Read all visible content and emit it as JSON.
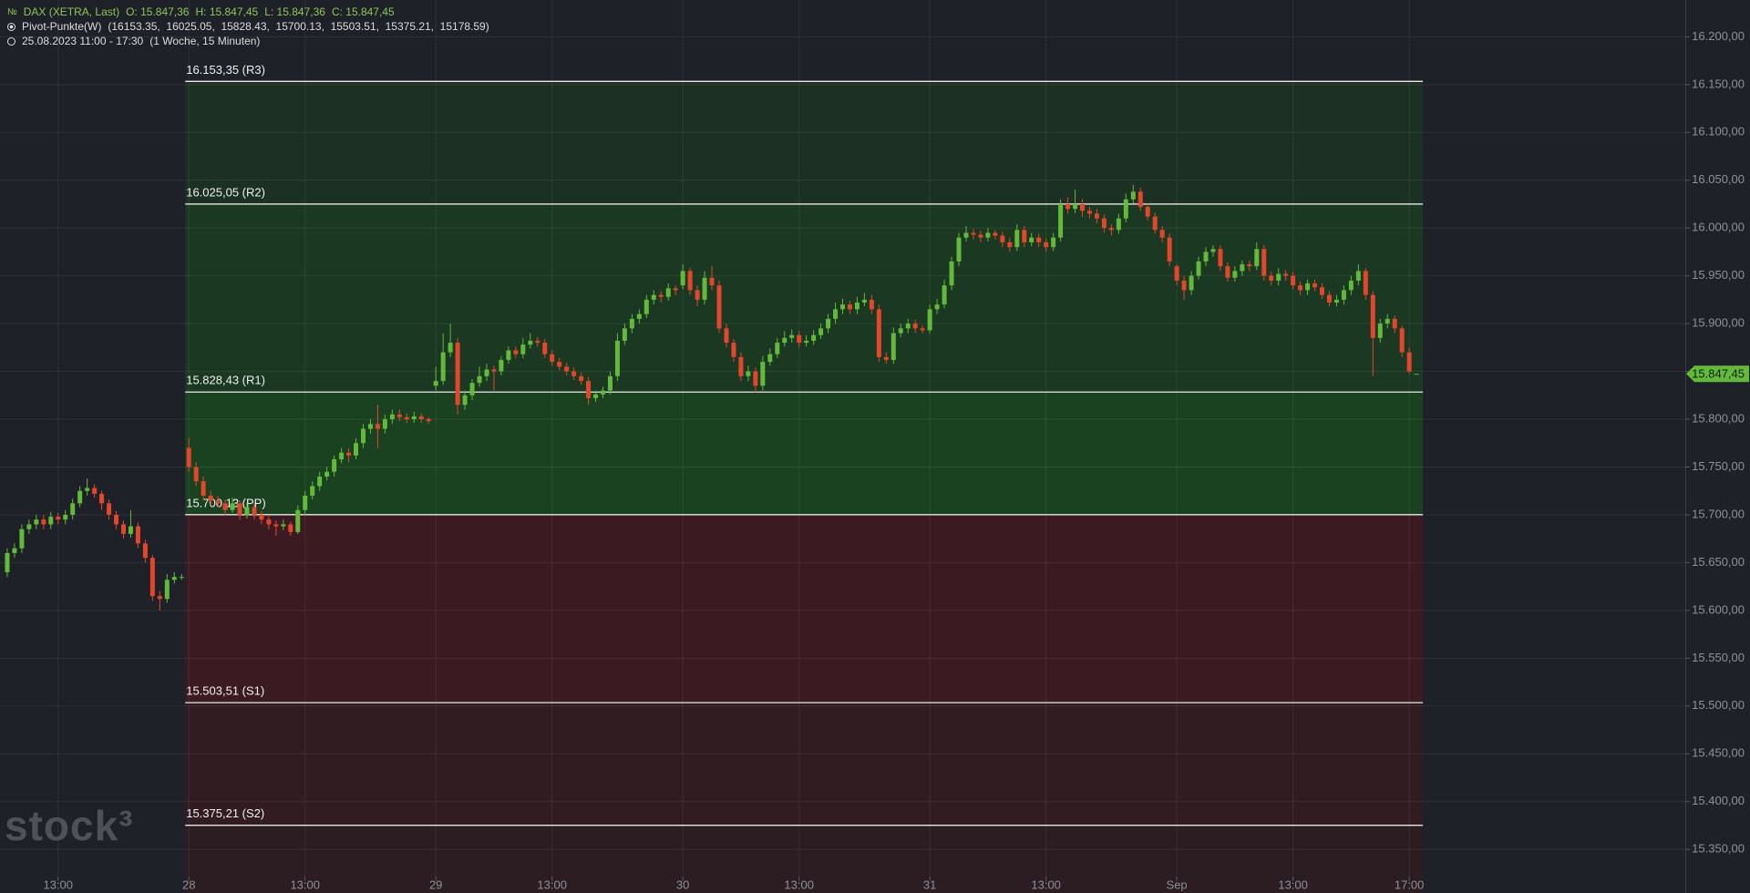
{
  "header": {
    "symbol": "DAX (XETRA, Last)",
    "ohlc": [
      "O: 15.847,36",
      "H: 15.847,45",
      "L: 15.847,36",
      "C: 15.847,45"
    ],
    "indicator": "Pivot-Punkte(W)",
    "indicator_params": "(16153.35,  16025.05,  15828.43,  15700.13,  15503.51,  15375.21,  15178.59)",
    "period": "25.08.2023 11:00 - 17:30",
    "period_detail": "(1 Woche, 15 Minuten)"
  },
  "chart_data": {
    "type": "candlestick",
    "watermark": "stock³",
    "grid": true,
    "up_color": "#62b93c",
    "down_color": "#e2462d",
    "xlim": [
      -1,
      231
    ],
    "ylim": [
      15304.4,
      16238.5
    ],
    "xticks": [
      {
        "value": 7,
        "label": "13:00"
      },
      {
        "value": 25,
        "label": "28"
      },
      {
        "value": 41,
        "label": "13:00"
      },
      {
        "value": 59,
        "label": "29"
      },
      {
        "value": 75,
        "label": "13:00"
      },
      {
        "value": 93,
        "label": "30"
      },
      {
        "value": 109,
        "label": "13:00"
      },
      {
        "value": 127,
        "label": "31"
      },
      {
        "value": 143,
        "label": "13:00"
      },
      {
        "value": 161,
        "label": "Sep"
      },
      {
        "value": 177,
        "label": "13:00"
      },
      {
        "value": 193,
        "label": "17:00"
      }
    ],
    "yticks": [
      {
        "value": 15350,
        "label": "15.350,00"
      },
      {
        "value": 15400,
        "label": "15.400,00"
      },
      {
        "value": 15450,
        "label": "15.450,00"
      },
      {
        "value": 15500,
        "label": "15.500,00"
      },
      {
        "value": 15550,
        "label": "15.550,00"
      },
      {
        "value": 15600,
        "label": "15.600,00"
      },
      {
        "value": 15650,
        "label": "15.650,00"
      },
      {
        "value": 15700,
        "label": "15.700,00"
      },
      {
        "value": 15750,
        "label": "15.750,00"
      },
      {
        "value": 15800,
        "label": "15.800,00"
      },
      {
        "value": 15850,
        "label": "15.850,00"
      },
      {
        "value": 15900,
        "label": "15.900,00"
      },
      {
        "value": 15950,
        "label": "15.950,00"
      },
      {
        "value": 16000,
        "label": "16.000,00"
      },
      {
        "value": 16050,
        "label": "16.050,00"
      },
      {
        "value": 16100,
        "label": "16.100,00"
      },
      {
        "value": 16150,
        "label": "16.150,00"
      },
      {
        "value": 16200,
        "label": "16.200,00"
      }
    ],
    "pivots": [
      {
        "value": 16153.35,
        "label": "16.153,35 (R3)"
      },
      {
        "value": 16025.05,
        "label": "16.025,05 (R2)"
      },
      {
        "value": 15828.43,
        "label": "15.828,43 (R1)"
      },
      {
        "value": 15700.13,
        "label": "15.700,13 (PP)"
      },
      {
        "value": 15503.51,
        "label": "15.503,51 (S1)"
      },
      {
        "value": 15375.21,
        "label": "15.375,21 (S2)"
      }
    ],
    "zone_colors": [
      "#1d3024",
      "#1b3822",
      "#1a4221",
      "#3b1b21",
      "#311c22",
      "#2b1d22"
    ],
    "last_price": {
      "value": 15847.45,
      "label": "15.847,45"
    },
    "candles": [
      [
        15640,
        15665,
        15635,
        15660
      ],
      [
        15660,
        15670,
        15655,
        15665
      ],
      [
        15665,
        15690,
        15660,
        15685
      ],
      [
        15685,
        15695,
        15680,
        15690
      ],
      [
        15690,
        15700,
        15685,
        15695
      ],
      [
        15695,
        15700,
        15685,
        15690
      ],
      [
        15690,
        15703,
        15685,
        15698
      ],
      [
        15698,
        15702,
        15690,
        15695
      ],
      [
        15695,
        15705,
        15690,
        15700
      ],
      [
        15700,
        15717,
        15695,
        15712
      ],
      [
        15712,
        15730,
        15708,
        15725
      ],
      [
        15725,
        15738,
        15720,
        15728
      ],
      [
        15728,
        15732,
        15718,
        15722
      ],
      [
        15722,
        15725,
        15705,
        15712
      ],
      [
        15712,
        15716,
        15695,
        15700
      ],
      [
        15700,
        15704,
        15685,
        15690
      ],
      [
        15690,
        15694,
        15675,
        15680
      ],
      [
        15680,
        15705,
        15676,
        15688
      ],
      [
        15688,
        15692,
        15665,
        15670
      ],
      [
        15670,
        15674,
        15650,
        15655
      ],
      [
        15655,
        15658,
        15610,
        15615
      ],
      [
        15615,
        15620,
        15600,
        15612
      ],
      [
        15612,
        15638,
        15608,
        15632
      ],
      [
        15632,
        15640,
        15628,
        15635
      ],
      [
        15635,
        15638,
        15632,
        15635
      ],
      [
        15770,
        15780,
        15745,
        15750
      ],
      [
        15750,
        15755,
        15730,
        15735
      ],
      [
        15735,
        15740,
        15715,
        15720
      ],
      [
        15720,
        15725,
        15710,
        15715
      ],
      [
        15715,
        15720,
        15708,
        15712
      ],
      [
        15712,
        15716,
        15700,
        15705
      ],
      [
        15705,
        15718,
        15702,
        15712
      ],
      [
        15712,
        15715,
        15695,
        15700
      ],
      [
        15700,
        15712,
        15696,
        15708
      ],
      [
        15708,
        15712,
        15695,
        15700
      ],
      [
        15700,
        15704,
        15690,
        15695
      ],
      [
        15695,
        15700,
        15685,
        15690
      ],
      [
        15690,
        15694,
        15678,
        15688
      ],
      [
        15688,
        15695,
        15684,
        15690
      ],
      [
        15690,
        15693,
        15678,
        15682
      ],
      [
        15682,
        15710,
        15680,
        15705
      ],
      [
        15705,
        15725,
        15700,
        15720
      ],
      [
        15720,
        15735,
        15716,
        15730
      ],
      [
        15730,
        15745,
        15725,
        15740
      ],
      [
        15740,
        15750,
        15736,
        15745
      ],
      [
        15745,
        15762,
        15740,
        15758
      ],
      [
        15758,
        15770,
        15754,
        15765
      ],
      [
        15765,
        15770,
        15755,
        15762
      ],
      [
        15762,
        15780,
        15758,
        15775
      ],
      [
        15775,
        15795,
        15770,
        15790
      ],
      [
        15790,
        15800,
        15785,
        15795
      ],
      [
        15795,
        15815,
        15770,
        15790
      ],
      [
        15790,
        15805,
        15785,
        15800
      ],
      [
        15800,
        15810,
        15795,
        15805
      ],
      [
        15805,
        15810,
        15798,
        15802
      ],
      [
        15802,
        15806,
        15796,
        15800
      ],
      [
        15800,
        15808,
        15796,
        15803
      ],
      [
        15803,
        15806,
        15796,
        15800
      ],
      [
        15800,
        15802,
        15795,
        15798
      ],
      [
        15835,
        15855,
        15830,
        15840
      ],
      [
        15840,
        15890,
        15836,
        15870
      ],
      [
        15870,
        15900,
        15865,
        15880
      ],
      [
        15880,
        15885,
        15805,
        15815
      ],
      [
        15815,
        15830,
        15810,
        15825
      ],
      [
        15825,
        15842,
        15820,
        15838
      ],
      [
        15838,
        15855,
        15834,
        15845
      ],
      [
        15845,
        15858,
        15840,
        15852
      ],
      [
        15852,
        15856,
        15830,
        15850
      ],
      [
        15850,
        15866,
        15846,
        15862
      ],
      [
        15862,
        15876,
        15858,
        15872
      ],
      [
        15872,
        15876,
        15864,
        15868
      ],
      [
        15868,
        15885,
        15864,
        15878
      ],
      [
        15878,
        15890,
        15874,
        15882
      ],
      [
        15882,
        15886,
        15876,
        15880
      ],
      [
        15880,
        15884,
        15864,
        15868
      ],
      [
        15868,
        15872,
        15856,
        15860
      ],
      [
        15860,
        15864,
        15851,
        15855
      ],
      [
        15855,
        15859,
        15846,
        15850
      ],
      [
        15850,
        15854,
        15841,
        15845
      ],
      [
        15845,
        15849,
        15836,
        15840
      ],
      [
        15840,
        15844,
        15815,
        15822
      ],
      [
        15822,
        15830,
        15818,
        15826
      ],
      [
        15826,
        15834,
        15822,
        15830
      ],
      [
        15830,
        15850,
        15826,
        15845
      ],
      [
        15845,
        15890,
        15840,
        15882
      ],
      [
        15882,
        15900,
        15878,
        15895
      ],
      [
        15895,
        15910,
        15890,
        15905
      ],
      [
        15905,
        15915,
        15900,
        15910
      ],
      [
        15910,
        15930,
        15906,
        15925
      ],
      [
        15925,
        15935,
        15920,
        15930
      ],
      [
        15930,
        15934,
        15922,
        15928
      ],
      [
        15928,
        15942,
        15924,
        15937
      ],
      [
        15937,
        15940,
        15930,
        15935
      ],
      [
        15940,
        15962,
        15936,
        15955
      ],
      [
        15955,
        15958,
        15930,
        15935
      ],
      [
        15935,
        15940,
        15918,
        15925
      ],
      [
        15925,
        15955,
        15920,
        15948
      ],
      [
        15948,
        15960,
        15935,
        15940
      ],
      [
        15940,
        15945,
        15890,
        15895
      ],
      [
        15895,
        15900,
        15875,
        15880
      ],
      [
        15880,
        15884,
        15860,
        15865
      ],
      [
        15865,
        15870,
        15840,
        15845
      ],
      [
        15845,
        15856,
        15840,
        15850
      ],
      [
        15850,
        15854,
        15828,
        15835
      ],
      [
        15835,
        15866,
        15830,
        15860
      ],
      [
        15860,
        15874,
        15856,
        15868
      ],
      [
        15868,
        15885,
        15864,
        15880
      ],
      [
        15880,
        15892,
        15876,
        15885
      ],
      [
        15885,
        15894,
        15880,
        15888
      ],
      [
        15888,
        15892,
        15875,
        15880
      ],
      [
        15880,
        15888,
        15876,
        15882
      ],
      [
        15882,
        15893,
        15878,
        15888
      ],
      [
        15888,
        15900,
        15884,
        15895
      ],
      [
        15895,
        15910,
        15890,
        15905
      ],
      [
        15905,
        15922,
        15900,
        15915
      ],
      [
        15915,
        15926,
        15910,
        15920
      ],
      [
        15920,
        15924,
        15910,
        15915
      ],
      [
        15915,
        15928,
        15910,
        15922
      ],
      [
        15922,
        15932,
        15918,
        15925
      ],
      [
        15925,
        15930,
        15910,
        15915
      ],
      [
        15915,
        15920,
        15860,
        15865
      ],
      [
        15865,
        15870,
        15858,
        15862
      ],
      [
        15862,
        15896,
        15858,
        15890
      ],
      [
        15890,
        15900,
        15886,
        15895
      ],
      [
        15895,
        15905,
        15890,
        15900
      ],
      [
        15900,
        15904,
        15890,
        15895
      ],
      [
        15895,
        15898,
        15890,
        15893
      ],
      [
        15893,
        15920,
        15890,
        15915
      ],
      [
        15915,
        15926,
        15910,
        15920
      ],
      [
        15920,
        15946,
        15916,
        15940
      ],
      [
        15940,
        15970,
        15935,
        15965
      ],
      [
        15965,
        15995,
        15960,
        15990
      ],
      [
        15990,
        16002,
        15986,
        15995
      ],
      [
        15995,
        15999,
        15988,
        15993
      ],
      [
        15993,
        15997,
        15985,
        15990
      ],
      [
        15990,
        16000,
        15986,
        15995
      ],
      [
        15995,
        15998,
        15988,
        15992
      ],
      [
        15992,
        15996,
        15980,
        15985
      ],
      [
        15985,
        15990,
        15975,
        15980
      ],
      [
        15980,
        16004,
        15976,
        15998
      ],
      [
        15998,
        16002,
        15980,
        15985
      ],
      [
        15985,
        15995,
        15981,
        15990
      ],
      [
        15990,
        15994,
        15980,
        15985
      ],
      [
        15985,
        15989,
        15975,
        15980
      ],
      [
        15980,
        15995,
        15976,
        15990
      ],
      [
        15990,
        16030,
        15986,
        16025
      ],
      [
        16025,
        16032,
        16015,
        16020
      ],
      [
        16020,
        16040,
        16016,
        16025
      ],
      [
        16025,
        16030,
        16012,
        16018
      ],
      [
        16018,
        16022,
        16010,
        16015
      ],
      [
        16015,
        16020,
        16005,
        16010
      ],
      [
        16010,
        16014,
        15995,
        16000
      ],
      [
        16000,
        16004,
        15992,
        15998
      ],
      [
        15998,
        16015,
        15994,
        16010
      ],
      [
        16010,
        16036,
        16006,
        16030
      ],
      [
        16030,
        16045,
        16026,
        16038
      ],
      [
        16038,
        16042,
        16018,
        16022
      ],
      [
        16022,
        16026,
        16008,
        16012
      ],
      [
        16012,
        16016,
        15994,
        15998
      ],
      [
        15998,
        16002,
        15985,
        15990
      ],
      [
        15990,
        15994,
        15960,
        15965
      ],
      [
        15960,
        15962,
        15940,
        15945
      ],
      [
        15945,
        15950,
        15925,
        15935
      ],
      [
        15935,
        15955,
        15930,
        15950
      ],
      [
        15950,
        15970,
        15946,
        15965
      ],
      [
        15965,
        15980,
        15960,
        15975
      ],
      [
        15975,
        15982,
        15970,
        15978
      ],
      [
        15978,
        15982,
        15955,
        15960
      ],
      [
        15960,
        15964,
        15944,
        15948
      ],
      [
        15948,
        15960,
        15944,
        15955
      ],
      [
        15955,
        15966,
        15950,
        15962
      ],
      [
        15962,
        15966,
        15955,
        15960
      ],
      [
        15960,
        15985,
        15956,
        15978
      ],
      [
        15978,
        15982,
        15945,
        15950
      ],
      [
        15950,
        15954,
        15940,
        15945
      ],
      [
        15945,
        15958,
        15940,
        15952
      ],
      [
        15952,
        15956,
        15945,
        15950
      ],
      [
        15950,
        15954,
        15936,
        15940
      ],
      [
        15940,
        15944,
        15930,
        15935
      ],
      [
        15935,
        15946,
        15930,
        15942
      ],
      [
        15942,
        15946,
        15934,
        15938
      ],
      [
        15938,
        15942,
        15926,
        15930
      ],
      [
        15930,
        15934,
        15918,
        15922
      ],
      [
        15922,
        15930,
        15918,
        15925
      ],
      [
        15925,
        15940,
        15920,
        15935
      ],
      [
        15935,
        15950,
        15930,
        15945
      ],
      [
        15945,
        15962,
        15940,
        15955
      ],
      [
        15955,
        15958,
        15925,
        15930
      ],
      [
        15930,
        15934,
        15845,
        15885
      ],
      [
        15885,
        15905,
        15880,
        15900
      ],
      [
        15900,
        15910,
        15895,
        15905
      ],
      [
        15905,
        15908,
        15890,
        15895
      ],
      [
        15895,
        15898,
        15865,
        15870
      ],
      [
        15870,
        15875,
        15848,
        15850
      ],
      [
        15847.36,
        15847.45,
        15847.36,
        15847.45
      ]
    ]
  }
}
